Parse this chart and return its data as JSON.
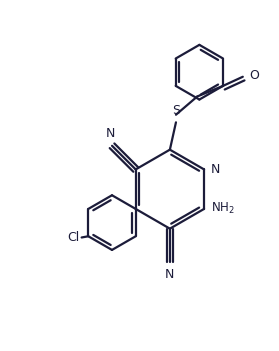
{
  "background_color": "#ffffff",
  "line_color": "#1c1c3a",
  "line_width": 1.6,
  "dbo": 0.12,
  "figsize": [
    2.79,
    3.51
  ],
  "dpi": 100,
  "xlim": [
    0,
    9
  ],
  "ylim": [
    0,
    11.3
  ]
}
